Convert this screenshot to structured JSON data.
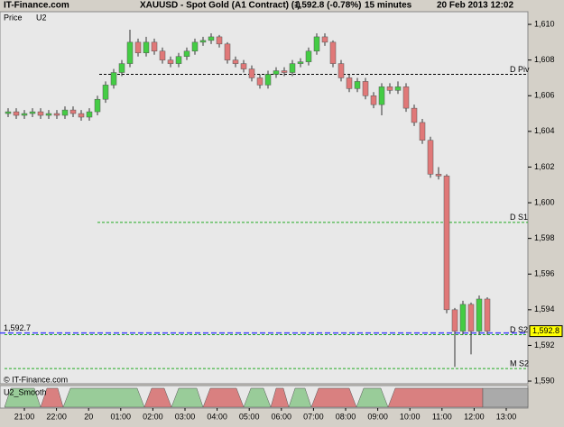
{
  "header": {
    "site": "IT-Finance.com",
    "title": "XAUUSD - Spot Gold (A1 Contract) (-)",
    "last": "1,592.8 (-0.78%)",
    "interval": "15 minutes",
    "timestamp": "20 Feb 2013 12:02"
  },
  "chart_data": {
    "type": "candlestick",
    "legend": [
      "Price",
      "U2"
    ],
    "open": [
      1605.0,
      1605.1,
      1604.9,
      1605.0,
      1605.1,
      1604.9,
      1605.0,
      1604.9,
      1605.2,
      1605.0,
      1604.8,
      1605.1,
      1605.8,
      1606.6,
      1607.3,
      1607.8,
      1609.0,
      1608.4,
      1609.0,
      1608.5,
      1608.0,
      1607.8,
      1608.2,
      1608.5,
      1609.0,
      1609.1,
      1609.3,
      1608.9,
      1608.0,
      1607.8,
      1607.5,
      1607.0,
      1606.6,
      1607.2,
      1607.4,
      1607.3,
      1607.8,
      1607.9,
      1608.5,
      1609.3,
      1609.0,
      1607.8,
      1607.0,
      1606.4,
      1606.8,
      1606.0,
      1605.5,
      1606.5,
      1606.3,
      1606.5,
      1605.3,
      1604.5,
      1603.5,
      1601.6,
      1601.5,
      1594.0,
      1592.8,
      1594.3,
      1592.8,
      1594.6
    ],
    "high": [
      1605.3,
      1605.3,
      1605.2,
      1605.3,
      1605.3,
      1605.2,
      1605.2,
      1605.4,
      1605.4,
      1605.2,
      1605.3,
      1606.0,
      1606.8,
      1607.5,
      1608.0,
      1609.7,
      1609.2,
      1609.3,
      1609.2,
      1608.7,
      1608.2,
      1608.4,
      1608.7,
      1609.2,
      1609.3,
      1609.5,
      1609.4,
      1609.0,
      1608.2,
      1608.0,
      1607.7,
      1607.2,
      1607.4,
      1607.6,
      1607.6,
      1608.0,
      1608.1,
      1608.7,
      1609.5,
      1609.5,
      1609.1,
      1608.0,
      1607.2,
      1607.0,
      1607.0,
      1606.2,
      1606.7,
      1606.7,
      1606.8,
      1606.7,
      1605.5,
      1604.7,
      1603.7,
      1602.0,
      1601.6,
      1594.1,
      1594.5,
      1594.4,
      1594.8,
      1594.7
    ],
    "low": [
      1604.8,
      1604.7,
      1604.7,
      1604.8,
      1604.7,
      1604.7,
      1604.7,
      1604.7,
      1604.8,
      1604.6,
      1604.6,
      1604.9,
      1605.6,
      1606.4,
      1607.1,
      1607.6,
      1608.2,
      1608.2,
      1608.3,
      1607.8,
      1607.6,
      1607.6,
      1608.0,
      1608.3,
      1608.8,
      1608.9,
      1608.7,
      1607.8,
      1607.6,
      1607.3,
      1606.8,
      1606.4,
      1606.4,
      1607.0,
      1607.1,
      1607.1,
      1607.6,
      1607.7,
      1608.3,
      1608.8,
      1607.6,
      1606.8,
      1606.2,
      1606.2,
      1605.8,
      1605.3,
      1604.9,
      1606.1,
      1606.1,
      1605.1,
      1604.3,
      1603.3,
      1601.4,
      1601.3,
      1593.8,
      1590.8,
      1592.6,
      1591.5,
      1592.6,
      1592.6
    ],
    "close": [
      1605.1,
      1604.9,
      1605.0,
      1605.1,
      1604.9,
      1605.0,
      1604.9,
      1605.2,
      1605.0,
      1604.8,
      1605.1,
      1605.8,
      1606.6,
      1607.3,
      1607.8,
      1609.0,
      1608.4,
      1609.0,
      1608.5,
      1608.0,
      1607.8,
      1608.2,
      1608.5,
      1609.0,
      1609.1,
      1609.3,
      1608.9,
      1608.0,
      1607.8,
      1607.5,
      1607.0,
      1606.6,
      1607.2,
      1607.4,
      1607.3,
      1607.8,
      1607.9,
      1608.5,
      1609.3,
      1609.0,
      1607.8,
      1607.0,
      1606.4,
      1606.8,
      1606.0,
      1605.5,
      1606.5,
      1606.3,
      1606.5,
      1605.3,
      1604.5,
      1603.5,
      1601.6,
      1601.5,
      1594.0,
      1592.8,
      1594.3,
      1592.8,
      1594.6,
      1592.8
    ],
    "up_color": "#44cc44",
    "down_color": "#e07878",
    "ylim": [
      1589.85,
      1610.71
    ],
    "yticks": [
      {
        "value": 1590,
        "label": "1,590"
      },
      {
        "value": 1592,
        "label": "1,592"
      },
      {
        "value": 1594,
        "label": "1,594"
      },
      {
        "value": 1596,
        "label": "1,596"
      },
      {
        "value": 1598,
        "label": "1,598"
      },
      {
        "value": 1600,
        "label": "1,600"
      },
      {
        "value": 1602,
        "label": "1,602"
      },
      {
        "value": 1604,
        "label": "1,604"
      },
      {
        "value": 1606,
        "label": "1,606"
      },
      {
        "value": 1608,
        "label": "1,608"
      },
      {
        "value": 1610,
        "label": "1,610"
      }
    ],
    "xticks": [
      "21:00",
      "22:00",
      "20",
      "01:00",
      "02:00",
      "03:00",
      "04:00",
      "05:00",
      "06:00",
      "07:00",
      "08:00",
      "09:00",
      "10:00",
      "11:00",
      "12:00",
      "13:00"
    ],
    "levels": [
      {
        "name": "D Piv",
        "value": 1607.2,
        "color": "#000000"
      },
      {
        "name": "D S1",
        "value": 1598.9,
        "color": "#22aa22"
      },
      {
        "name": "D S2",
        "value": 1592.6,
        "color": "#22aa22"
      },
      {
        "name": "M S2",
        "value": 1590.7,
        "color": "#22aa22"
      }
    ],
    "bid_line": {
      "value": 1592.7,
      "label": "1,592.7",
      "color": "#4444ff"
    },
    "last_price": {
      "value": 1592.8,
      "label": "1,592.8"
    }
  },
  "indicator": {
    "title": "U2_Smooth"
  },
  "footer": "© IT-Finance.com"
}
